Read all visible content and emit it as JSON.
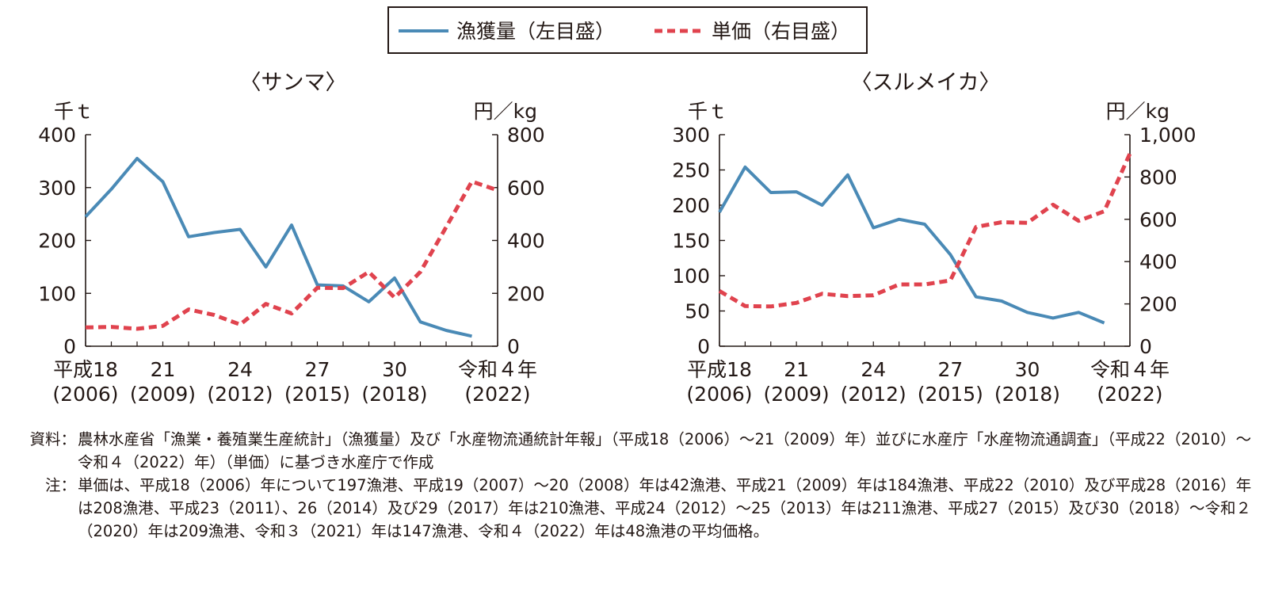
{
  "legend": {
    "catch_label": "漁獲量（左目盛）",
    "price_label": "単価（右目盛）",
    "catch_color": "#4a8ab6",
    "price_color": "#e0434e"
  },
  "chart_data": [
    {
      "type": "line",
      "title": "〈サンマ〉",
      "left_unit": "千ｔ",
      "right_unit": "円／kg",
      "x": [
        2006,
        2007,
        2008,
        2009,
        2010,
        2011,
        2012,
        2013,
        2014,
        2015,
        2016,
        2017,
        2018,
        2019,
        2020,
        2021,
        2022
      ],
      "xlim": [
        2006,
        2022
      ],
      "x_tick_years": [
        2006,
        2009,
        2012,
        2015,
        2018,
        2022
      ],
      "x_tick_labels": [
        {
          "top": "平成18",
          "bottom": "(2006)"
        },
        {
          "top": "21",
          "bottom": "(2009)"
        },
        {
          "top": "24",
          "bottom": "(2012)"
        },
        {
          "top": "27",
          "bottom": "(2015)"
        },
        {
          "top": "30",
          "bottom": "(2018)"
        },
        {
          "top": "令和４年",
          "bottom": "(2022)"
        }
      ],
      "left_axis": {
        "ylim": [
          0,
          400
        ],
        "ticks": [
          0,
          100,
          200,
          300,
          400
        ],
        "tick_labels": [
          "0",
          "100",
          "200",
          "300",
          "400"
        ]
      },
      "right_axis": {
        "ylim": [
          0,
          800
        ],
        "ticks": [
          0,
          200,
          400,
          600,
          800
        ],
        "tick_labels": [
          "0",
          "200",
          "400",
          "600",
          "800"
        ]
      },
      "series": [
        {
          "name": "漁獲量",
          "axis": "left",
          "style": "solid",
          "values": [
            245,
            297,
            355,
            311,
            207,
            215,
            221,
            150,
            229,
            116,
            114,
            84,
            129,
            46,
            30,
            19,
            null
          ]
        },
        {
          "name": "単価",
          "axis": "right",
          "style": "dashed",
          "values": [
            71,
            73,
            66,
            77,
            139,
            118,
            82,
            160,
            124,
            221,
            220,
            281,
            184,
            281,
            450,
            623,
            590
          ]
        }
      ]
    },
    {
      "type": "line",
      "title": "〈スルメイカ〉",
      "left_unit": "千ｔ",
      "right_unit": "円／kg",
      "x": [
        2006,
        2007,
        2008,
        2009,
        2010,
        2011,
        2012,
        2013,
        2014,
        2015,
        2016,
        2017,
        2018,
        2019,
        2020,
        2021,
        2022
      ],
      "xlim": [
        2006,
        2022
      ],
      "x_tick_years": [
        2006,
        2009,
        2012,
        2015,
        2018,
        2022
      ],
      "x_tick_labels": [
        {
          "top": "平成18",
          "bottom": "(2006)"
        },
        {
          "top": "21",
          "bottom": "(2009)"
        },
        {
          "top": "24",
          "bottom": "(2012)"
        },
        {
          "top": "27",
          "bottom": "(2015)"
        },
        {
          "top": "30",
          "bottom": "(2018)"
        },
        {
          "top": "令和４年",
          "bottom": "(2022)"
        }
      ],
      "left_axis": {
        "ylim": [
          0,
          300
        ],
        "ticks": [
          0,
          50,
          100,
          150,
          200,
          250,
          300
        ],
        "tick_labels": [
          "0",
          "50",
          "100",
          "150",
          "200",
          "250",
          "300"
        ]
      },
      "right_axis": {
        "ylim": [
          0,
          1000
        ],
        "ticks": [
          0,
          200,
          400,
          600,
          800,
          1000
        ],
        "tick_labels": [
          "0",
          "200",
          "400",
          "600",
          "800",
          "1,000"
        ]
      },
      "series": [
        {
          "name": "漁獲量",
          "axis": "left",
          "style": "solid",
          "values": [
            190,
            254,
            218,
            219,
            200,
            243,
            168,
            180,
            173,
            130,
            70,
            64,
            48,
            40,
            48,
            33,
            null
          ]
        },
        {
          "name": "単価",
          "axis": "right",
          "style": "dashed",
          "values": [
            261,
            190,
            188,
            205,
            248,
            237,
            241,
            292,
            292,
            311,
            564,
            586,
            583,
            669,
            593,
            638,
            911
          ]
        }
      ]
    }
  ],
  "notes": {
    "source_label": "資料：",
    "source_text": "農林水産省「漁業・養殖業生産統計」（漁獲量）及び「水産物流通統計年報」（平成18（2006）～21（2009）年）並びに水産庁「水産物流通調査」（平成22（2010）～令和４（2022）年）（単価）に基づき水産庁で作成",
    "note_label": "注：",
    "note_text": "単価は、平成18（2006）年について197漁港、平成19（2007）～20（2008）年は42漁港、平成21（2009）年は184漁港、平成22（2010）及び平成28（2016）年は208漁港、平成23（2011）、26（2014）及び29（2017）年は210漁港、平成24（2012）～25（2013）年は211漁港、平成27（2015）及び30（2018）～令和２（2020）年は209漁港、令和３（2021）年は147漁港、令和４（2022）年は48漁港の平均価格。"
  }
}
